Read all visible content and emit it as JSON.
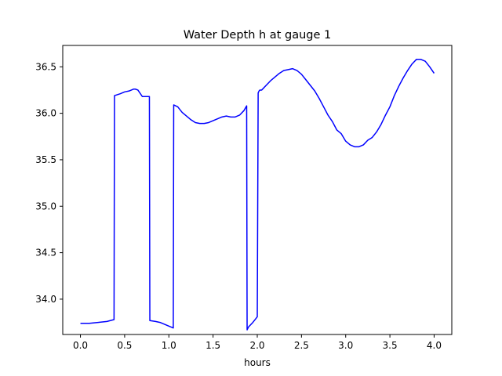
{
  "chart_data": {
    "type": "line",
    "title": "Water Depth h at gauge 1",
    "xlabel": "hours",
    "ylabel": "",
    "xlim": [
      -0.2,
      4.2
    ],
    "ylim": [
      33.62,
      36.73
    ],
    "xticks": [
      0.0,
      0.5,
      1.0,
      1.5,
      2.0,
      2.5,
      3.0,
      3.5,
      4.0
    ],
    "yticks": [
      34.0,
      34.5,
      35.0,
      35.5,
      36.0,
      36.5
    ],
    "x_tick_labels": [
      "0.0",
      "0.5",
      "1.0",
      "1.5",
      "2.0",
      "2.5",
      "3.0",
      "3.5",
      "4.0"
    ],
    "y_tick_labels": [
      "34.0",
      "34.5",
      "35.0",
      "35.5",
      "36.0",
      "36.5"
    ],
    "grid": false,
    "colors": {
      "line": "#0000ff",
      "axes": "#000000",
      "background": "#ffffff"
    },
    "series": [
      {
        "x": [
          0.0,
          0.1,
          0.2,
          0.3,
          0.38,
          0.385,
          0.45,
          0.5,
          0.55,
          0.6,
          0.62,
          0.65,
          0.7,
          0.75,
          0.78,
          0.785,
          0.85,
          0.9,
          0.95,
          1.0,
          1.05,
          1.055,
          1.1,
          1.15,
          1.2,
          1.25,
          1.3,
          1.35,
          1.4,
          1.45,
          1.5,
          1.55,
          1.6,
          1.65,
          1.7,
          1.75,
          1.8,
          1.85,
          1.88,
          1.885,
          1.9,
          1.95,
          2.0,
          2.01,
          2.02,
          2.03,
          2.05,
          2.1,
          2.15,
          2.2,
          2.25,
          2.3,
          2.35,
          2.4,
          2.45,
          2.5,
          2.55,
          2.6,
          2.65,
          2.7,
          2.75,
          2.8,
          2.85,
          2.9,
          2.95,
          3.0,
          3.05,
          3.1,
          3.15,
          3.2,
          3.25,
          3.3,
          3.35,
          3.4,
          3.45,
          3.5,
          3.55,
          3.6,
          3.65,
          3.7,
          3.75,
          3.8,
          3.85,
          3.9,
          3.95,
          4.0
        ],
        "y": [
          33.74,
          33.74,
          33.75,
          33.76,
          33.78,
          36.19,
          36.21,
          36.23,
          36.24,
          36.26,
          36.26,
          36.25,
          36.18,
          36.18,
          36.18,
          33.77,
          33.76,
          33.75,
          33.73,
          33.71,
          33.69,
          36.09,
          36.07,
          36.01,
          35.97,
          35.93,
          35.9,
          35.89,
          35.89,
          35.9,
          35.92,
          35.94,
          35.96,
          35.97,
          35.96,
          35.96,
          35.98,
          36.03,
          36.08,
          33.67,
          33.7,
          33.75,
          33.81,
          36.22,
          36.24,
          36.25,
          36.25,
          36.3,
          36.35,
          36.39,
          36.43,
          36.46,
          36.47,
          36.48,
          36.46,
          36.42,
          36.36,
          36.3,
          36.24,
          36.16,
          36.07,
          35.98,
          35.91,
          35.82,
          35.78,
          35.7,
          35.66,
          35.64,
          35.64,
          35.66,
          35.71,
          35.74,
          35.8,
          35.88,
          35.98,
          36.07,
          36.19,
          36.29,
          36.38,
          36.46,
          36.53,
          36.58,
          36.58,
          36.56,
          36.5,
          36.43
        ]
      }
    ]
  }
}
